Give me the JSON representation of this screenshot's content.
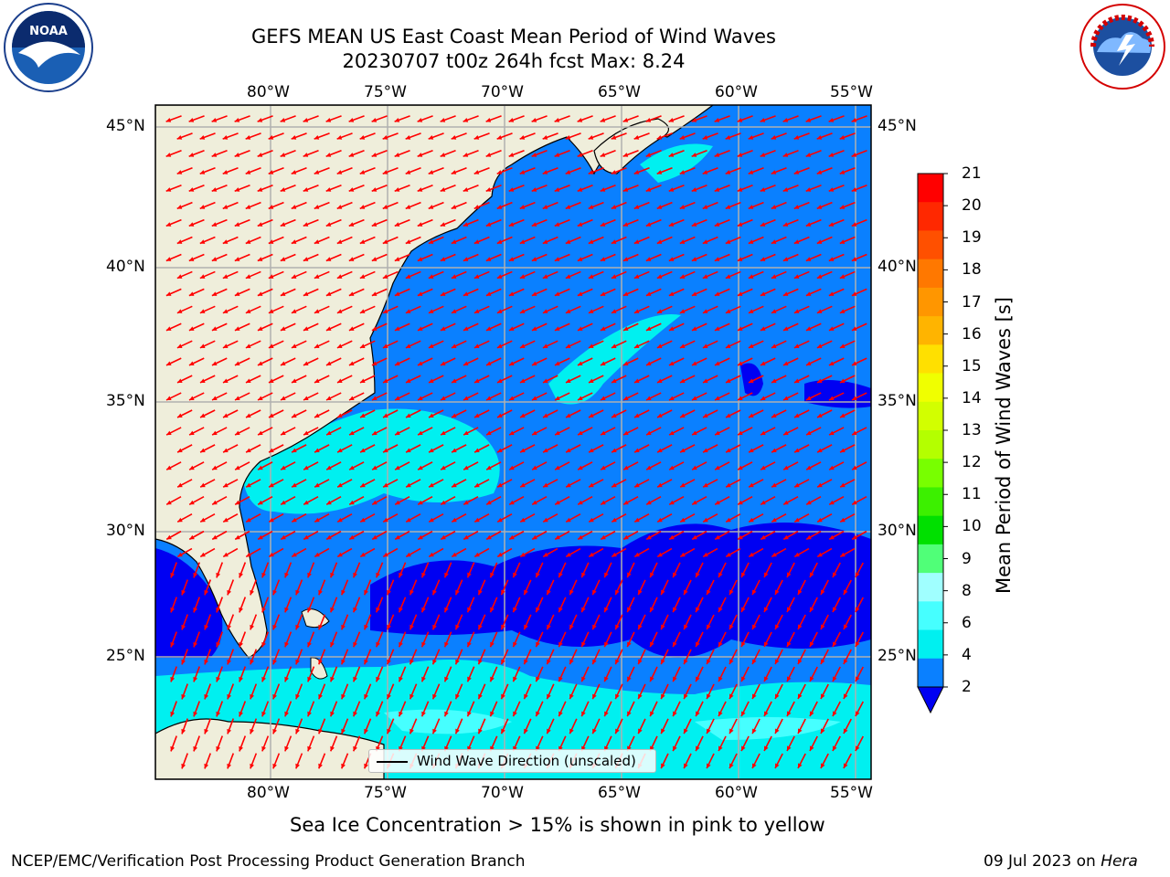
{
  "header": {
    "title_line1": "GEFS MEAN US East Coast Mean Period of Wind Waves",
    "title_line2": "20230707 t00z 264h fcst   Max: 8.24"
  },
  "logos": {
    "left": {
      "icon": "noaa-logo",
      "text": "NOAA",
      "ring_text": "NATIONAL OCEANIC AND ATMOSPHERIC ADMINISTRATION · U.S. DEPARTMENT OF COMMERCE"
    },
    "right": {
      "icon": "nws-logo",
      "ring_text": "NATIONAL WEATHER SERVICE"
    }
  },
  "map": {
    "lon_ticks": [
      "80°W",
      "75°W",
      "70°W",
      "65°W",
      "60°W",
      "55°W"
    ],
    "lat_ticks": [
      "45°N",
      "40°N",
      "35°N",
      "30°N",
      "25°N"
    ],
    "legend_label": "Wind Wave Direction (unscaled)",
    "colors": {
      "land": "#efeedb",
      "ocean_2_4": "#0a80ff",
      "ocean_lt2": "#0000f2",
      "ocean_4_6": "#00f0f0",
      "ocean_6_8": "#46ffff",
      "arrow": "#ff0000",
      "grid": "#b0b0b0"
    }
  },
  "colorbar": {
    "label": "Mean Period of Wind Waves [s]",
    "ticks": [
      "21",
      "20",
      "19",
      "18",
      "17",
      "16",
      "15",
      "14",
      "13",
      "12",
      "11",
      "10",
      "9",
      "8",
      "6",
      "4",
      "2"
    ],
    "colors": [
      "#ff0000",
      "#ff2800",
      "#ff5000",
      "#ff7800",
      "#ff9600",
      "#ffb400",
      "#ffe000",
      "#f0ff00",
      "#d2ff00",
      "#b4ff00",
      "#78ff00",
      "#3cf000",
      "#00e000",
      "#50ff78",
      "#a0ffff",
      "#46ffff",
      "#00f0f0",
      "#0a80ff"
    ],
    "under_color": "#0000f2"
  },
  "caption": "Sea Ice Concentration > 15% is shown in pink to yellow",
  "footer": {
    "left": "NCEP/EMC/Verification Post Processing Product Generation Branch",
    "date": "09 Jul 2023 on ",
    "host": "Hera"
  }
}
